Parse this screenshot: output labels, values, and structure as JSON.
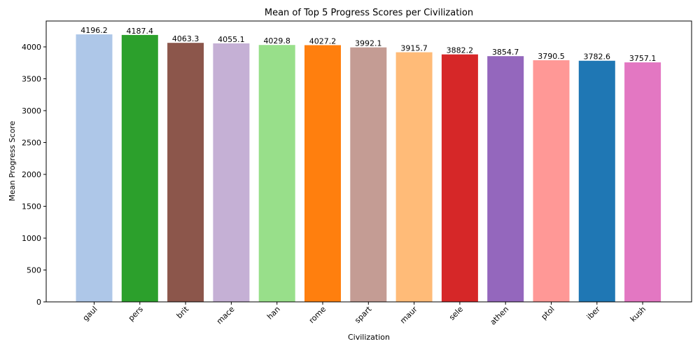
{
  "chart_data": {
    "type": "bar",
    "title": "Mean of Top 5 Progress Scores per Civilization",
    "xlabel": "Civilization",
    "ylabel": "Mean Progress Score",
    "ylim": [
      0,
      4406
    ],
    "yticks": [
      0,
      500,
      1000,
      1500,
      2000,
      2500,
      3000,
      3500,
      4000
    ],
    "grid": false,
    "categories": [
      "gaul",
      "pers",
      "brit",
      "mace",
      "han",
      "rome",
      "spart",
      "maur",
      "sele",
      "athen",
      "ptol",
      "iber",
      "kush"
    ],
    "values": [
      4196.2,
      4187.4,
      4063.3,
      4055.1,
      4029.8,
      4027.2,
      3992.1,
      3915.7,
      3882.2,
      3854.7,
      3790.5,
      3782.6,
      3757.1
    ],
    "data_labels": [
      "4196.2",
      "4187.4",
      "4063.3",
      "4055.1",
      "4029.8",
      "4027.2",
      "3992.1",
      "3915.7",
      "3882.2",
      "3854.7",
      "3790.5",
      "3782.6",
      "3757.1"
    ],
    "colors": [
      "#aec7e8",
      "#2ca02c",
      "#8c564b",
      "#c5b0d5",
      "#98df8a",
      "#ff7f0e",
      "#c49c94",
      "#ffbb78",
      "#d62728",
      "#9467bd",
      "#ff9896",
      "#1f77b4",
      "#e377c2"
    ]
  }
}
